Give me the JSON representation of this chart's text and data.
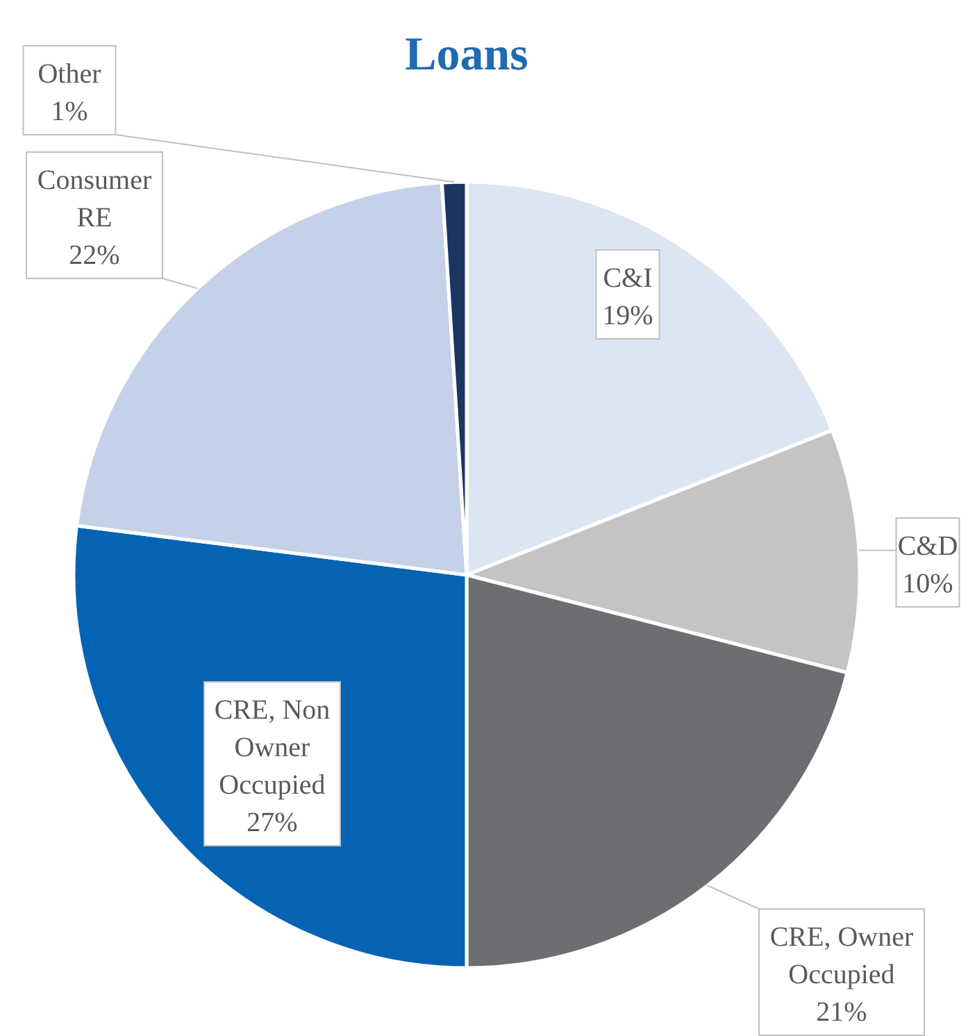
{
  "chart_data": {
    "type": "pie",
    "title": "Loans",
    "categories": [
      "C&I",
      "C&D",
      "CRE, Owner Occupied",
      "CRE, Non Owner Occupied",
      "Consumer RE",
      "Other"
    ],
    "values": [
      19,
      10,
      21,
      27,
      22,
      1
    ],
    "colors": [
      "#dce6f2",
      "#c4c4c4",
      "#6d6e71",
      "#0563b4",
      "#c5d1e8",
      "#1b3560"
    ],
    "value_labels": [
      "19%",
      "10%",
      "21%",
      "27%",
      "22%",
      "1%"
    ]
  }
}
